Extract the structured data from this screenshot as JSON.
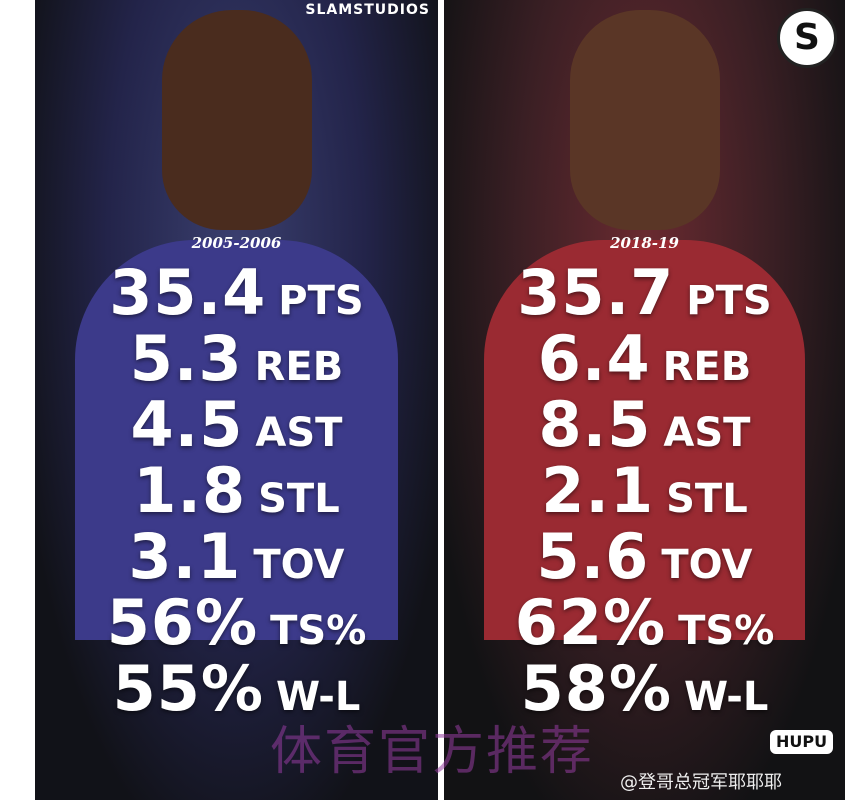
{
  "left": {
    "brand": "SLAMSTUDIOS",
    "season": "2005-2006",
    "stats": [
      {
        "value": "35.4",
        "label": "PTS"
      },
      {
        "value": "5.3",
        "label": "REB"
      },
      {
        "value": "4.5",
        "label": "AST"
      },
      {
        "value": "1.8",
        "label": "STL"
      },
      {
        "value": "3.1",
        "label": "TOV"
      },
      {
        "value": "56%",
        "label": "TS%"
      },
      {
        "value": "55%",
        "label": "W-L"
      }
    ]
  },
  "right": {
    "logo": "S",
    "season": "2018-19",
    "stats": [
      {
        "value": "35.7",
        "label": "PTS"
      },
      {
        "value": "6.4",
        "label": "REB"
      },
      {
        "value": "8.5",
        "label": "AST"
      },
      {
        "value": "2.1",
        "label": "STL"
      },
      {
        "value": "5.6",
        "label": "TOV"
      },
      {
        "value": "62%",
        "label": "TS%"
      },
      {
        "value": "58%",
        "label": "W-L"
      }
    ]
  },
  "watermark": "体育官方推荐",
  "hupu": "HUPU",
  "weibo_handle": "@登哥总冠军耶耶耶"
}
